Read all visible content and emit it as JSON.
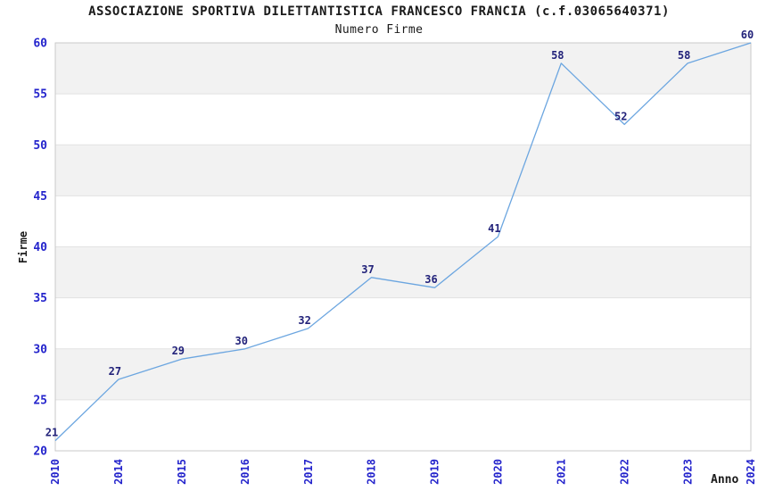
{
  "header": {
    "title": "ASSOCIAZIONE SPORTIVA DILETTANTISTICA FRANCESCO FRANCIA (c.f.03065640371)",
    "subtitle": "Numero Firme"
  },
  "chart_data": {
    "type": "line",
    "title": "ASSOCIAZIONE SPORTIVA DILETTANTISTICA FRANCESCO FRANCIA (c.f.03065640371)",
    "subtitle": "Numero Firme",
    "xlabel": "Anno",
    "ylabel": "Firme",
    "categories": [
      "2010",
      "2014",
      "2015",
      "2016",
      "2017",
      "2018",
      "2019",
      "2020",
      "2021",
      "2022",
      "2023",
      "2024"
    ],
    "values": [
      21,
      27,
      29,
      30,
      32,
      37,
      36,
      41,
      58,
      52,
      58,
      60
    ],
    "data_labels": [
      21,
      27,
      29,
      30,
      32,
      37,
      36,
      41,
      58,
      52,
      58,
      60
    ],
    "yticks": [
      20,
      25,
      30,
      35,
      40,
      45,
      50,
      55,
      60
    ],
    "ylim": [
      20,
      60
    ],
    "ytick_step": 5,
    "legend": "none",
    "grid": "horizontal-bands-alternating",
    "colors": {
      "line": "#6ca6e0",
      "tick_label": "#2424cc",
      "data_label": "#22227a",
      "axis_text": "#1a1a1a",
      "band_gray": "#f2f2f2",
      "gridline": "#e2e2e2",
      "spine": "#c9c9c9",
      "background": "#ffffff"
    }
  }
}
